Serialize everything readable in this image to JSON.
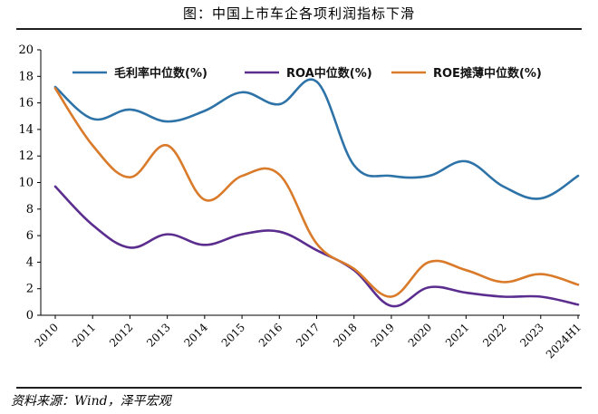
{
  "title": "图：中国上市车企各项利润指标下滑",
  "source": "资料来源：Wind，泽平宏观",
  "chart_data": {
    "type": "line",
    "categories": [
      "2010",
      "2011",
      "2012",
      "2013",
      "2014",
      "2015",
      "2016",
      "2017",
      "2018",
      "2019",
      "2020",
      "2021",
      "2022",
      "2023",
      "2024H1"
    ],
    "ylim": [
      0,
      20
    ],
    "yticks": [
      0,
      2,
      4,
      6,
      8,
      10,
      12,
      14,
      16,
      18,
      20
    ],
    "legend_position": "top",
    "series": [
      {
        "name": "毛利率中位数(%)",
        "color": "#2e73a8",
        "values": [
          17.2,
          14.8,
          15.5,
          14.6,
          15.4,
          16.8,
          15.9,
          17.6,
          11.3,
          10.5,
          10.5,
          11.6,
          9.7,
          8.8,
          10.5
        ]
      },
      {
        "name": "ROA中位数(%)",
        "color": "#5b2d8e",
        "values": [
          9.7,
          6.8,
          5.1,
          6.1,
          5.3,
          6.1,
          6.3,
          4.9,
          3.4,
          0.7,
          2.1,
          1.7,
          1.4,
          1.4,
          0.8
        ]
      },
      {
        "name": "ROE摊薄中位数(%)",
        "color": "#d97b2a",
        "values": [
          17.1,
          12.8,
          10.4,
          12.8,
          8.7,
          10.5,
          10.6,
          5.4,
          3.5,
          1.4,
          4.0,
          3.4,
          2.5,
          3.1,
          2.3
        ]
      }
    ]
  }
}
